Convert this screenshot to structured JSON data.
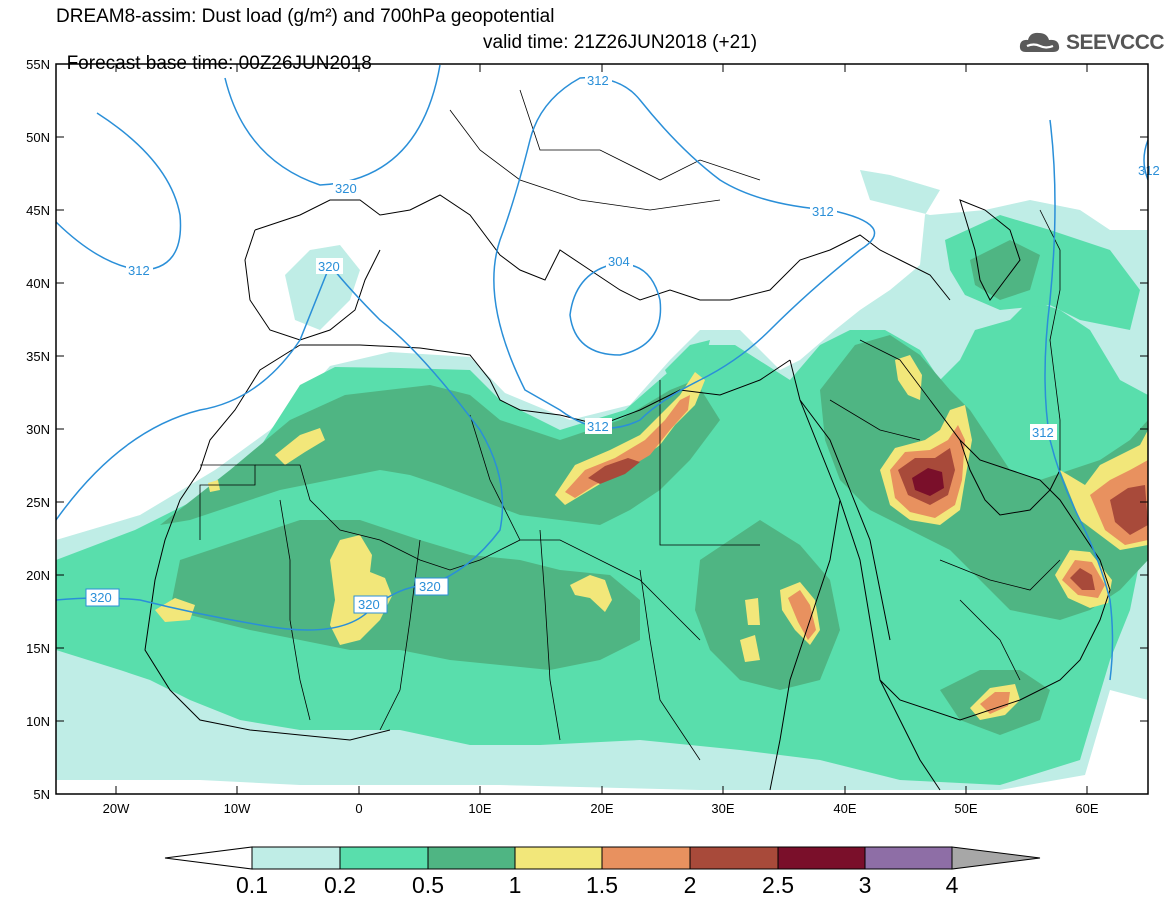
{
  "title": {
    "line1": "DREAM8-assim: Dust load (g/m²) and 700hPa geopotential",
    "line2_base": "Forecast base time: 00Z26JUN2018",
    "line2_valid": "valid time: 21Z26JUN2018 (+21)"
  },
  "logo": {
    "text": "SEEVCCC",
    "icon": "cloud-icon"
  },
  "axes": {
    "lat_labels": [
      "55N",
      "50N",
      "45N",
      "40N",
      "35N",
      "30N",
      "25N",
      "20N",
      "15N",
      "10N",
      "5N"
    ],
    "lon_labels": [
      "20W",
      "10W",
      "0",
      "10E",
      "20E",
      "30E",
      "40E",
      "50E",
      "60E"
    ]
  },
  "contours": {
    "labels": [
      "312",
      "320",
      "312",
      "320",
      "304",
      "312",
      "320",
      "320",
      "320",
      "312",
      "312",
      "312"
    ]
  },
  "legend": {
    "levels": [
      "0.1",
      "0.2",
      "0.5",
      "1",
      "1.5",
      "2",
      "2.5",
      "3",
      "4"
    ],
    "colors": [
      "#bfede6",
      "#59deac",
      "#4fb583",
      "#f2e77a",
      "#e8915f",
      "#a84a3a",
      "#7a0f2a",
      "#8e6ea6",
      "#a7a7a7"
    ]
  }
}
